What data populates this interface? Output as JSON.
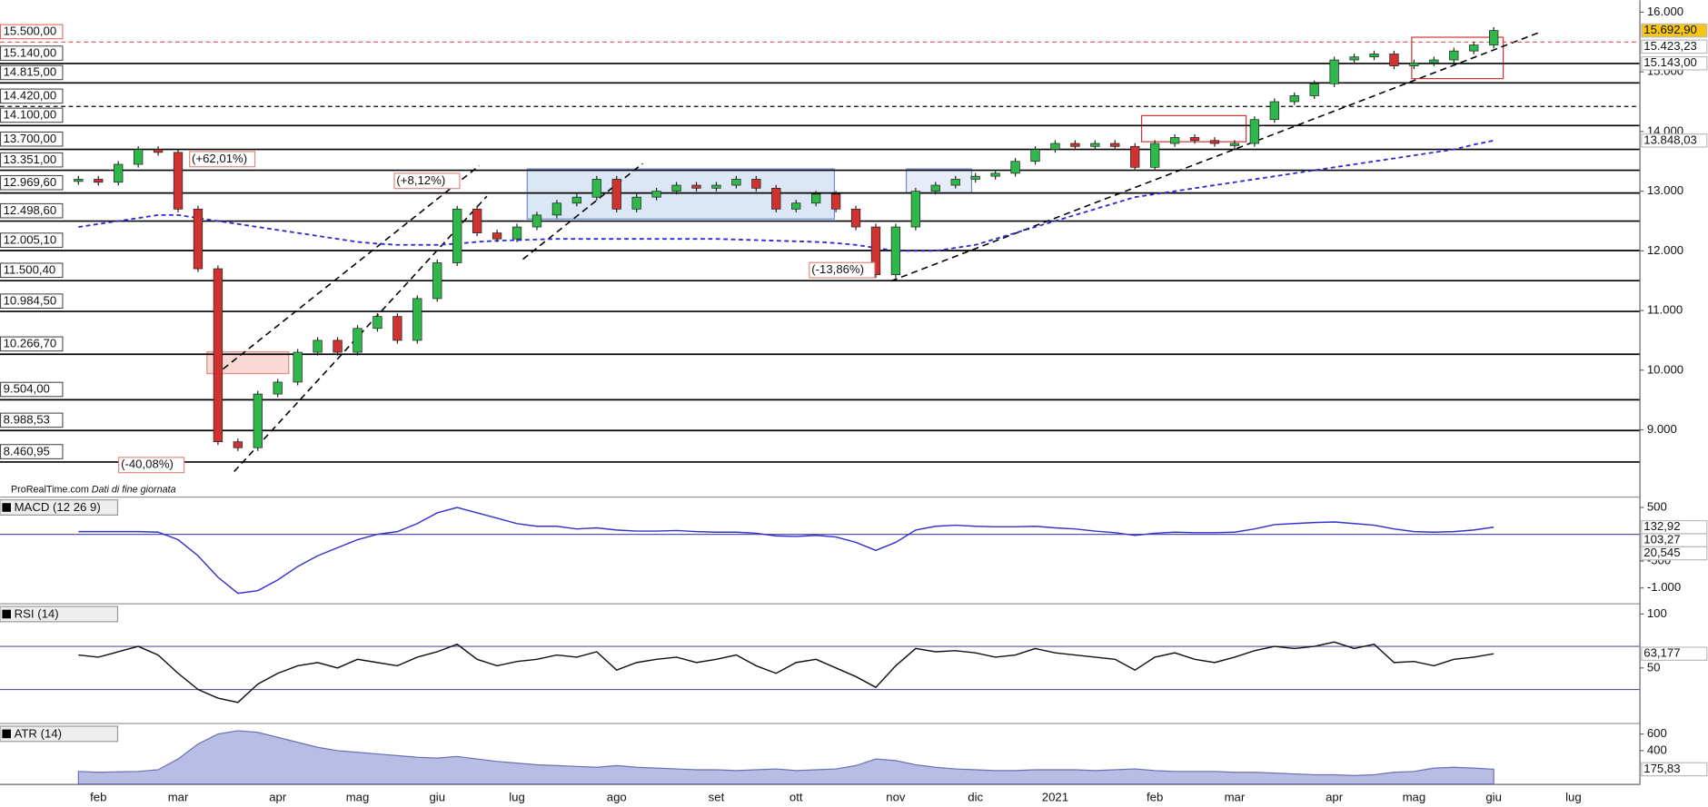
{
  "chart_data": [
    {
      "type": "candlestick",
      "categories": [
        null,
        "feb",
        null,
        null,
        null,
        "mar",
        null,
        null,
        null,
        null,
        "apr",
        null,
        null,
        null,
        "mag",
        null,
        null,
        null,
        "giu",
        null,
        null,
        null,
        "lug",
        null,
        null,
        null,
        null,
        "ago",
        null,
        null,
        null,
        null,
        "set",
        null,
        null,
        null,
        "ott",
        null,
        null,
        null,
        null,
        "nov",
        null,
        null,
        null,
        "dic",
        null,
        null,
        null,
        "2021",
        null,
        null,
        null,
        null,
        "feb",
        null,
        null,
        null,
        "mar",
        null,
        null,
        null,
        null,
        "apr",
        null,
        null,
        null,
        "mag",
        null,
        null,
        null,
        "giu",
        null,
        null,
        null,
        "lug",
        null,
        null,
        null
      ],
      "values": [
        13200,
        13150,
        13450,
        13700,
        13650,
        12700,
        11700,
        8800,
        8700,
        9600,
        9800,
        10300,
        10500,
        10300,
        10700,
        10900,
        10500,
        11200,
        11800,
        12700,
        12300,
        12200,
        12400,
        12600,
        12800,
        12900,
        13200,
        12700,
        12900,
        13000,
        13100,
        13050,
        13100,
        13200,
        13050,
        12700,
        12800,
        12950,
        12700,
        12400,
        11600,
        12400,
        13000,
        13100,
        13200,
        13250,
        13300,
        13500,
        13700,
        13800,
        13750,
        13800,
        13750,
        13400,
        13800,
        13900,
        13850,
        13800,
        13800,
        14200,
        14500,
        14600,
        14800,
        15200,
        15250,
        15300,
        15100,
        15150,
        15200,
        15350,
        15450,
        15692.9,
        null,
        null,
        null,
        null,
        null,
        null,
        null
      ],
      "up_color": "#2fb84a",
      "down_color": "#d0322f",
      "ma_color": "#2a2ad0",
      "ma_values": [
        12400,
        12450,
        12500,
        12550,
        12600,
        12600,
        12550,
        12500,
        12450,
        12400,
        12350,
        12300,
        12250,
        12200,
        12150,
        12120,
        12100,
        12100,
        12100,
        12120,
        12150,
        12170,
        12180,
        12190,
        12200,
        12200,
        12200,
        12200,
        12200,
        12200,
        12200,
        12200,
        12200,
        12190,
        12180,
        12170,
        12160,
        12150,
        12130,
        12100,
        12050,
        12000,
        12000,
        12000,
        12050,
        12100,
        12200,
        12300,
        12400,
        12500,
        12600,
        12700,
        12800,
        12900,
        12950,
        13000,
        13050,
        13100,
        13150,
        13200,
        13250,
        13300,
        13350,
        13400,
        13450,
        13500,
        13550,
        13600,
        13650,
        13700,
        13780,
        13848.03,
        null,
        null,
        null,
        null,
        null,
        null,
        null
      ],
      "ylim": [
        7900,
        16200
      ],
      "yticks": [
        {
          "value": 16000,
          "label": "16.000"
        },
        {
          "value": 15000,
          "label": "15.000"
        },
        {
          "value": 14000,
          "label": "14.000"
        },
        {
          "value": 13000,
          "label": "13.000"
        },
        {
          "value": 12000,
          "label": "12.000"
        },
        {
          "value": 11000,
          "label": "11.000"
        },
        {
          "value": 10000,
          "label": "10.000"
        },
        {
          "value": 9000,
          "label": "9.000"
        }
      ],
      "levels": [
        {
          "value": 15500,
          "label": "15.500,00",
          "dashed": true,
          "color": "#d9534f"
        },
        {
          "value": 15140,
          "label": "15.140,00",
          "dashed": false,
          "color": "#000000"
        },
        {
          "value": 14815,
          "label": "14.815,00",
          "dashed": false,
          "color": "#000000"
        },
        {
          "value": 14420,
          "label": "14.420,00",
          "dashed": true,
          "color": "#000000"
        },
        {
          "value": 14100,
          "label": "14.100,00",
          "dashed": false,
          "color": "#000000"
        },
        {
          "value": 13700,
          "label": "13.700,00",
          "dashed": false,
          "color": "#000000"
        },
        {
          "value": 13351,
          "label": "13.351,00",
          "dashed": false,
          "color": "#000000"
        },
        {
          "value": 12969.6,
          "label": "12.969,60",
          "dashed": false,
          "color": "#000000"
        },
        {
          "value": 12498.6,
          "label": "12.498,60",
          "dashed": false,
          "color": "#000000"
        },
        {
          "value": 12005.1,
          "label": "12.005,10",
          "dashed": false,
          "color": "#000000"
        },
        {
          "value": 11500.4,
          "label": "11.500,40",
          "dashed": false,
          "color": "#000000"
        },
        {
          "value": 10984.5,
          "label": "10.984,50",
          "dashed": false,
          "color": "#000000"
        },
        {
          "value": 10266.7,
          "label": "10.266,70",
          "dashed": false,
          "color": "#000000"
        },
        {
          "value": 9504,
          "label": "9.504,00",
          "dashed": false,
          "color": "#000000"
        },
        {
          "value": 8988.53,
          "label": "8.988,53",
          "dashed": false,
          "color": "#000000"
        },
        {
          "value": 8460.95,
          "label": "8.460,95",
          "dashed": false,
          "color": "#000000"
        }
      ],
      "value_boxes": [
        {
          "value": 15692.9,
          "label": "15.692,90",
          "color": "#000000",
          "fill": "#f5c518"
        },
        {
          "value": 15423.23,
          "label": "15.423,23",
          "color": "#d9534f",
          "fill": "#ffffff"
        },
        {
          "value": 15143,
          "label": "15.143,00",
          "color": "#3cb043",
          "fill": "#ffffff"
        },
        {
          "value": 13848.03,
          "label": "13.848,03",
          "color": "#2a2ad0",
          "fill": "#ffffff"
        }
      ],
      "annotations": [
        "(+62,01%)",
        "(+8,12%)",
        "(-13,86%)",
        "(-40,08%)"
      ],
      "source": "ProRealTime.com",
      "source_note": "Dati di fine giornata"
    },
    {
      "type": "line",
      "title": "MACD (12 26 9)",
      "color": "#3333cc",
      "values": [
        50,
        50,
        50,
        50,
        40,
        -100,
        -400,
        -800,
        -1100,
        -1050,
        -850,
        -600,
        -400,
        -250,
        -100,
        0,
        50,
        200,
        400,
        500,
        400,
        300,
        200,
        150,
        150,
        100,
        120,
        80,
        60,
        60,
        70,
        50,
        40,
        40,
        20,
        -30,
        -40,
        -20,
        -50,
        -150,
        -300,
        -150,
        80,
        150,
        170,
        150,
        140,
        140,
        150,
        120,
        100,
        60,
        30,
        -20,
        20,
        40,
        30,
        30,
        40,
        100,
        180,
        200,
        220,
        230,
        200,
        170,
        100,
        50,
        40,
        50,
        80,
        132.92,
        null,
        null,
        null,
        null,
        null,
        null,
        null
      ],
      "ylim": [
        -1264,
        663
      ],
      "yticks": [
        500,
        -500,
        {
          "value": -1000,
          "label": "-1.000"
        }
      ],
      "zero_line": true,
      "value_boxes": [
        {
          "value": 132.92,
          "label": "132,92",
          "color": "#3333cc",
          "fill": "#ffffff"
        },
        {
          "value": 103.27,
          "label": "103,27",
          "color": "#d9534f",
          "fill": "#ffffff"
        },
        {
          "value": 20.545,
          "label": "20,545",
          "color": "#3cb043",
          "fill": "#ffffff"
        }
      ]
    },
    {
      "type": "line",
      "title": "RSI (14)",
      "color": "#111111",
      "values": [
        62,
        60,
        65,
        70,
        62,
        45,
        30,
        22,
        18,
        35,
        45,
        52,
        55,
        50,
        58,
        55,
        52,
        60,
        65,
        72,
        58,
        52,
        56,
        58,
        62,
        60,
        65,
        48,
        55,
        58,
        60,
        55,
        58,
        62,
        52,
        45,
        55,
        58,
        50,
        42,
        32,
        52,
        68,
        65,
        66,
        64,
        60,
        62,
        68,
        64,
        62,
        60,
        58,
        48,
        60,
        64,
        58,
        55,
        60,
        66,
        70,
        68,
        70,
        74,
        68,
        72,
        55,
        56,
        52,
        58,
        60,
        63.177,
        null,
        null,
        null,
        null,
        null,
        null,
        null
      ],
      "ylim": [
        0,
        108
      ],
      "yticks": [
        100,
        50
      ],
      "bands": [
        70,
        30
      ],
      "value_boxes": [
        {
          "value": 63.177,
          "label": "63,177",
          "color": "#111111",
          "fill": "#ffffff"
        }
      ]
    },
    {
      "type": "area",
      "title": "ATR (14)",
      "color": "#b9bde3",
      "values": [
        150,
        140,
        145,
        150,
        170,
        300,
        480,
        600,
        640,
        620,
        560,
        500,
        440,
        400,
        380,
        360,
        340,
        320,
        310,
        330,
        300,
        270,
        250,
        230,
        220,
        210,
        200,
        220,
        200,
        190,
        180,
        170,
        170,
        160,
        170,
        180,
        160,
        170,
        180,
        220,
        300,
        280,
        230,
        200,
        180,
        170,
        160,
        160,
        170,
        170,
        170,
        160,
        170,
        180,
        160,
        150,
        150,
        150,
        140,
        140,
        130,
        120,
        110,
        110,
        100,
        110,
        140,
        150,
        190,
        200,
        190,
        175.83,
        null,
        null,
        null,
        null,
        null,
        null,
        null
      ],
      "ylim": [
        0,
        707
      ],
      "yticks": [
        600,
        400
      ],
      "value_boxes": [
        {
          "value": 175.83,
          "label": "175,83",
          "color": "#111111",
          "fill": "#ffffff"
        }
      ]
    }
  ]
}
